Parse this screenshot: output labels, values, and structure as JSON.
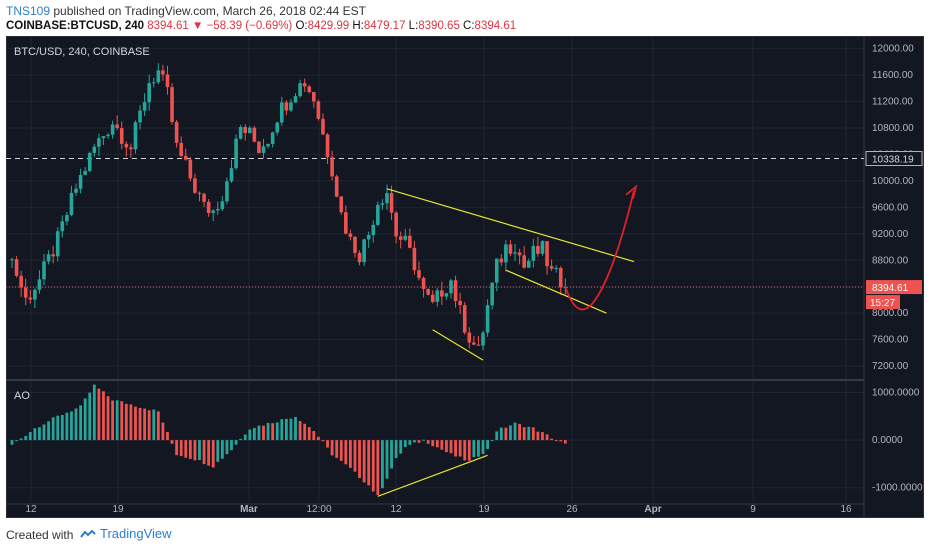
{
  "header": {
    "author": "TNS109",
    "published_text": "published on TradingView.com, March 26, 2018 02:44 EST",
    "symbol": "COINBASE:BTCUSD, 240",
    "last": "8394.61",
    "change": "▼ −58.39 (−0.69%)",
    "o_label": "O:",
    "o": "8429.99",
    "h_label": "H:",
    "h": "8479.17",
    "l_label": "L:",
    "l": "8390.65",
    "c_label": "C:",
    "c": "8394.61"
  },
  "chart_data": [
    {
      "type": "candlestick",
      "title": "BTC/USD, 240, COINBASE",
      "ylim": [
        7050,
        12100
      ],
      "y_ticks": [
        "12000.00",
        "11600.00",
        "11200.00",
        "10800.00",
        "10400.00",
        "10000.00",
        "9600.00",
        "9200.00",
        "8800.00",
        "8400.00",
        "8000.00",
        "7600.00",
        "7200.00"
      ],
      "x_tick_labels": [
        "12",
        "19",
        "Mar",
        "12:00",
        "12",
        "19",
        "26",
        "Apr",
        "9",
        "16"
      ],
      "series_trend": [
        [
          0,
          8800
        ],
        [
          3,
          8200
        ],
        [
          6,
          8500
        ],
        [
          10,
          9100
        ],
        [
          14,
          9900
        ],
        [
          18,
          10500
        ],
        [
          22,
          10900
        ],
        [
          26,
          10500
        ],
        [
          28,
          11000
        ],
        [
          30,
          11500
        ],
        [
          32,
          11650
        ],
        [
          34,
          11300
        ],
        [
          36,
          10500
        ],
        [
          38,
          10200
        ],
        [
          40,
          9900
        ],
        [
          42,
          9600
        ],
        [
          44,
          9550
        ],
        [
          46,
          9800
        ],
        [
          48,
          10300
        ],
        [
          50,
          10800
        ],
        [
          52,
          10700
        ],
        [
          54,
          10500
        ],
        [
          56,
          10650
        ],
        [
          58,
          11000
        ],
        [
          60,
          11200
        ],
        [
          62,
          11400
        ],
        [
          64,
          11500
        ],
        [
          66,
          11250
        ],
        [
          68,
          10700
        ],
        [
          70,
          10200
        ],
        [
          72,
          9500
        ],
        [
          74,
          9100
        ],
        [
          76,
          8900
        ],
        [
          78,
          9200
        ],
        [
          80,
          9700
        ],
        [
          82,
          9850
        ],
        [
          84,
          9200
        ],
        [
          86,
          9050
        ],
        [
          88,
          8750
        ],
        [
          90,
          8300
        ],
        [
          92,
          8100
        ],
        [
          94,
          8350
        ],
        [
          96,
          8500
        ],
        [
          98,
          8000
        ],
        [
          100,
          7650
        ],
        [
          102,
          7400
        ],
        [
          104,
          8100
        ],
        [
          106,
          8700
        ],
        [
          108,
          9000
        ],
        [
          110,
          9050
        ],
        [
          112,
          8700
        ],
        [
          114,
          8900
        ],
        [
          116,
          8950
        ],
        [
          118,
          8600
        ],
        [
          120,
          8500
        ],
        [
          121,
          8395
        ]
      ],
      "current_price": "8394.61",
      "countdown": "15:27",
      "dashed_level": "10338.19",
      "forecast_path": [
        [
          121,
          8395
        ],
        [
          124,
          8100
        ],
        [
          128,
          8250
        ],
        [
          132,
          9100
        ],
        [
          136,
          9850
        ]
      ],
      "trendlines": [
        {
          "name": "upper-wedge",
          "from": [
            82,
            9880
          ],
          "to": [
            136,
            8780
          ]
        },
        {
          "name": "lower-wedge",
          "from": [
            108,
            8650
          ],
          "to": [
            130,
            8000
          ]
        },
        {
          "name": "lower-left",
          "from": [
            92,
            7750
          ],
          "to": [
            103,
            7290
          ]
        }
      ]
    },
    {
      "type": "bar",
      "title": "AO",
      "ylim": [
        -1300,
        1200
      ],
      "y_ticks": [
        "1000.0000",
        "0.0000",
        "-1000.0000"
      ],
      "series_trend": [
        [
          0,
          -100
        ],
        [
          5,
          250
        ],
        [
          10,
          500
        ],
        [
          15,
          700
        ],
        [
          18,
          1150
        ],
        [
          22,
          850
        ],
        [
          28,
          700
        ],
        [
          32,
          600
        ],
        [
          36,
          -300
        ],
        [
          40,
          -400
        ],
        [
          44,
          -550
        ],
        [
          48,
          -200
        ],
        [
          52,
          250
        ],
        [
          56,
          350
        ],
        [
          62,
          500
        ],
        [
          66,
          200
        ],
        [
          70,
          -300
        ],
        [
          74,
          -600
        ],
        [
          78,
          -950
        ],
        [
          80,
          -1180
        ],
        [
          84,
          -400
        ],
        [
          86,
          -150
        ],
        [
          90,
          0
        ],
        [
          92,
          -100
        ],
        [
          96,
          -300
        ],
        [
          100,
          -450
        ],
        [
          104,
          -200
        ],
        [
          106,
          200
        ],
        [
          110,
          350
        ],
        [
          114,
          250
        ],
        [
          118,
          50
        ],
        [
          121,
          -90
        ]
      ],
      "trendline": {
        "from": [
          80,
          -1180
        ],
        "to": [
          104,
          -320
        ]
      }
    }
  ],
  "footer": {
    "created_with": "Created with",
    "brand": "TradingView"
  }
}
